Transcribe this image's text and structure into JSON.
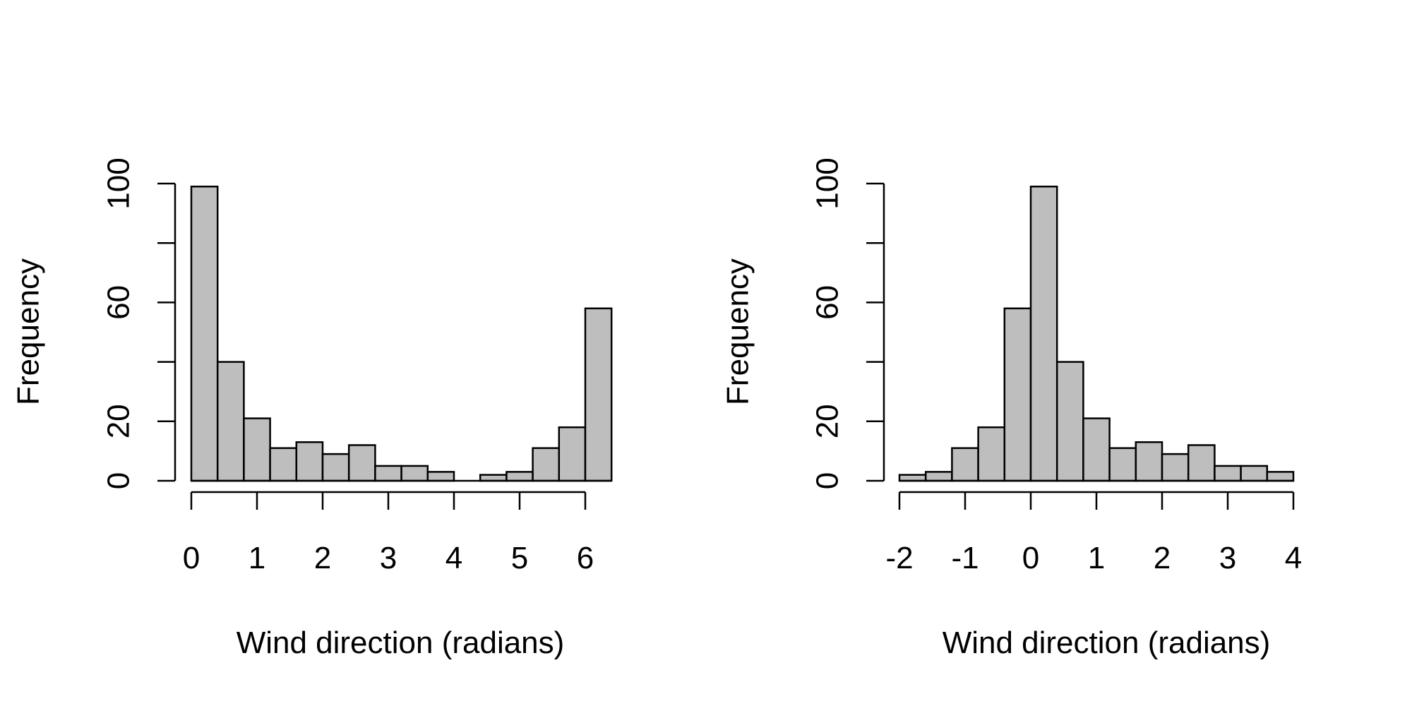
{
  "chart_data": [
    {
      "type": "bar",
      "xlabel": "Wind direction (radians)",
      "ylabel": "Frequency",
      "ylim": [
        0,
        100
      ],
      "yticks": [
        0,
        20,
        60,
        100
      ],
      "yticks_unlabeled": [
        40,
        80
      ],
      "xticks": [
        0,
        1,
        2,
        3,
        4,
        5,
        6
      ],
      "xtick_labels": [
        "0",
        "1",
        "2",
        "3",
        "4",
        "5",
        "6"
      ],
      "xlim": [
        0,
        6.4
      ],
      "bin_edges": [
        0,
        0.4,
        0.8,
        1.2,
        1.6,
        2.0,
        2.4,
        2.8,
        3.2,
        3.6,
        4.0,
        4.4,
        4.8,
        5.2,
        5.6,
        6.0,
        6.4
      ],
      "values": [
        99,
        40,
        21,
        11,
        13,
        9,
        12,
        5,
        5,
        3,
        0,
        2,
        3,
        11,
        18,
        58
      ],
      "grid": false
    },
    {
      "type": "bar",
      "xlabel": "Wind direction (radians)",
      "ylabel": "Frequency",
      "ylim": [
        0,
        100
      ],
      "yticks": [
        0,
        20,
        60,
        100
      ],
      "yticks_unlabeled": [
        40,
        80
      ],
      "xticks": [
        -2,
        -1,
        0,
        1,
        2,
        3,
        4
      ],
      "xtick_labels": [
        "-2",
        "-1",
        "0",
        "1",
        "2",
        "3",
        "4"
      ],
      "xlim": [
        -2.0,
        4.0
      ],
      "bin_edges": [
        -2.0,
        -1.6,
        -1.2,
        -0.8,
        -0.4,
        0,
        0.4,
        0.8,
        1.2,
        1.6,
        2.0,
        2.4,
        2.8,
        3.2,
        3.6,
        4.0
      ],
      "values": [
        2,
        3,
        11,
        18,
        58,
        99,
        40,
        21,
        11,
        13,
        9,
        12,
        5,
        5,
        3
      ],
      "grid": false
    }
  ]
}
